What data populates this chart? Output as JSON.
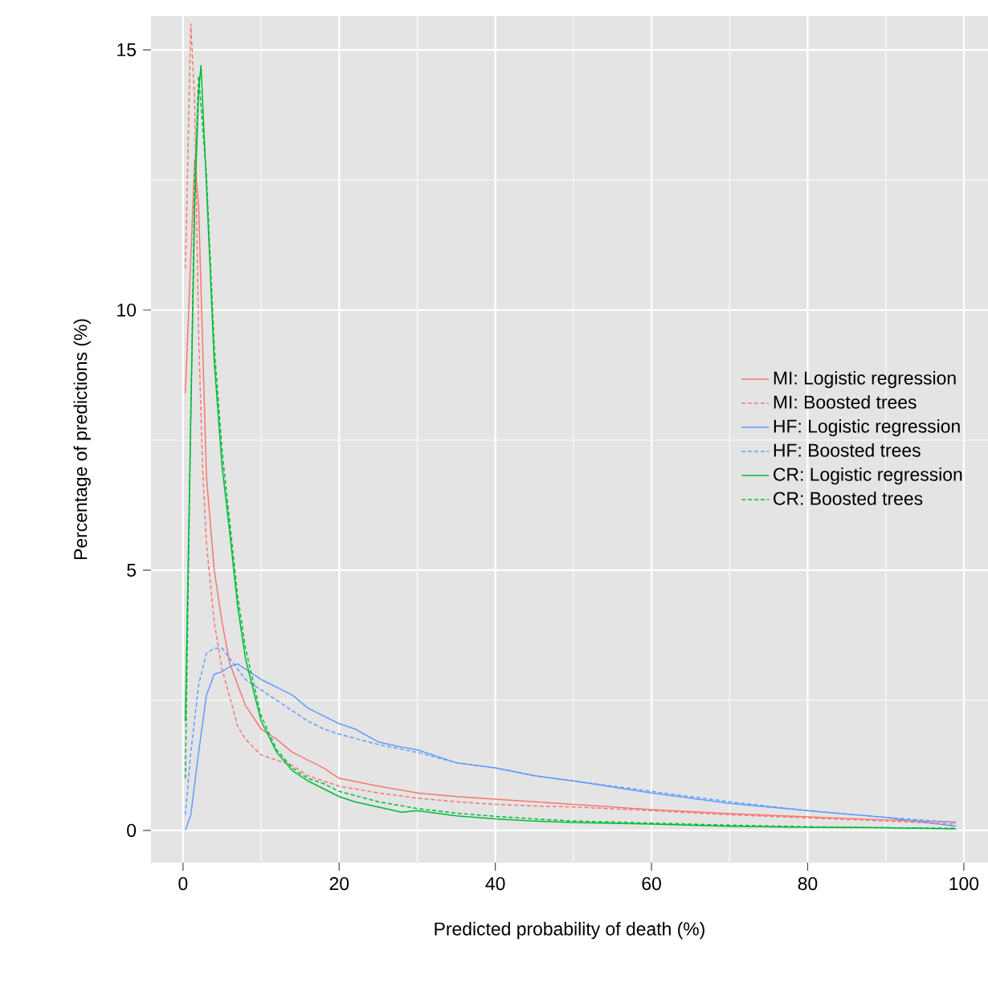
{
  "chart_data": {
    "type": "line",
    "xlabel": "Predicted probability of death (%)",
    "ylabel": "Percentage of predictions (%)",
    "xlim": [
      -4.1,
      103.1
    ],
    "ylim": [
      -0.62,
      15.65
    ],
    "xticks": [
      0,
      20,
      40,
      60,
      80,
      100
    ],
    "yticks": [
      0,
      5,
      10,
      15
    ],
    "grid": true,
    "legend": "right",
    "series": [
      {
        "name": "MI: Logistic regression",
        "color": "#f8766d",
        "line_style": "solid",
        "x": [
          0.3,
          1,
          1.5,
          2,
          3,
          4,
          5,
          6,
          8,
          10,
          12,
          14,
          16,
          18,
          20,
          25,
          30,
          35,
          40,
          45,
          50,
          60,
          70,
          80,
          90,
          99
        ],
        "values": [
          8.4,
          11,
          12.9,
          12.0,
          6.8,
          5.0,
          4.0,
          3.2,
          2.4,
          1.95,
          1.75,
          1.5,
          1.35,
          1.2,
          1.0,
          0.85,
          0.72,
          0.65,
          0.6,
          0.55,
          0.5,
          0.4,
          0.32,
          0.26,
          0.2,
          0.16
        ]
      },
      {
        "name": "MI: Boosted trees",
        "color": "#f8766d",
        "line_style": "dashed",
        "x": [
          0.3,
          1,
          1.5,
          2,
          2.5,
          3,
          4,
          5,
          7,
          8,
          10,
          12,
          14,
          16,
          18,
          20,
          25,
          30,
          35,
          40,
          45,
          50,
          60,
          70,
          80,
          90,
          99
        ],
        "values": [
          10.8,
          15.5,
          14.0,
          9.5,
          7.0,
          5.5,
          4.0,
          3.1,
          2.0,
          1.75,
          1.45,
          1.35,
          1.25,
          1.05,
          0.95,
          0.85,
          0.72,
          0.62,
          0.55,
          0.5,
          0.47,
          0.45,
          0.38,
          0.3,
          0.24,
          0.18,
          0.12
        ]
      },
      {
        "name": "HF: Logistic regression",
        "color": "#619cff",
        "line_style": "solid",
        "x": [
          0.3,
          1,
          2,
          3,
          4,
          5,
          6,
          7,
          8,
          10,
          12,
          14,
          16,
          18,
          20,
          22,
          25,
          28,
          30,
          35,
          40,
          45,
          50,
          60,
          70,
          80,
          90,
          99
        ],
        "values": [
          0,
          0.3,
          1.5,
          2.6,
          3.0,
          3.05,
          3.15,
          3.2,
          3.1,
          2.9,
          2.75,
          2.6,
          2.35,
          2.2,
          2.05,
          1.95,
          1.7,
          1.6,
          1.55,
          1.3,
          1.2,
          1.05,
          0.95,
          0.72,
          0.52,
          0.38,
          0.25,
          0.08
        ]
      },
      {
        "name": "HF: Boosted trees",
        "color": "#619cff",
        "line_style": "dashed",
        "x": [
          0.3,
          1,
          2,
          3,
          4,
          5,
          6,
          7,
          8,
          10,
          12,
          14,
          16,
          18,
          20,
          25,
          30,
          35,
          40,
          45,
          50,
          60,
          70,
          80,
          90,
          99
        ],
        "values": [
          0.3,
          1.5,
          2.8,
          3.4,
          3.5,
          3.5,
          3.3,
          3.1,
          2.9,
          2.7,
          2.5,
          2.3,
          2.1,
          1.95,
          1.85,
          1.65,
          1.5,
          1.3,
          1.2,
          1.05,
          0.95,
          0.75,
          0.55,
          0.38,
          0.25,
          0.15
        ]
      },
      {
        "name": "CR: Logistic regression",
        "color": "#00ba38",
        "line_style": "solid",
        "x": [
          0.3,
          1,
          1.5,
          2,
          2.3,
          3,
          4,
          5,
          6,
          7,
          8,
          10,
          12,
          14,
          16,
          18,
          20,
          22,
          25,
          28,
          30,
          35,
          40,
          45,
          50,
          60,
          70,
          80,
          90,
          99
        ],
        "values": [
          2.1,
          8,
          12,
          14.2,
          14.7,
          12.4,
          9,
          7,
          5.7,
          4.3,
          3.3,
          2.1,
          1.5,
          1.15,
          0.95,
          0.8,
          0.65,
          0.55,
          0.45,
          0.35,
          0.38,
          0.28,
          0.22,
          0.18,
          0.15,
          0.12,
          0.08,
          0.06,
          0.05,
          0.03
        ]
      },
      {
        "name": "CR: Boosted trees",
        "color": "#00ba38",
        "line_style": "dashed",
        "x": [
          0.3,
          1,
          1.5,
          2,
          3,
          4,
          5,
          6,
          7,
          8,
          10,
          12,
          14,
          16,
          18,
          20,
          25,
          30,
          35,
          40,
          45,
          50,
          60,
          70,
          80,
          90,
          99
        ],
        "values": [
          1.0,
          8,
          12.5,
          14.5,
          12.6,
          9.3,
          7.3,
          5.9,
          4.5,
          3.5,
          2.2,
          1.55,
          1.2,
          1.0,
          0.9,
          0.75,
          0.55,
          0.42,
          0.33,
          0.27,
          0.22,
          0.18,
          0.14,
          0.1,
          0.07,
          0.05,
          0.04
        ]
      }
    ]
  }
}
